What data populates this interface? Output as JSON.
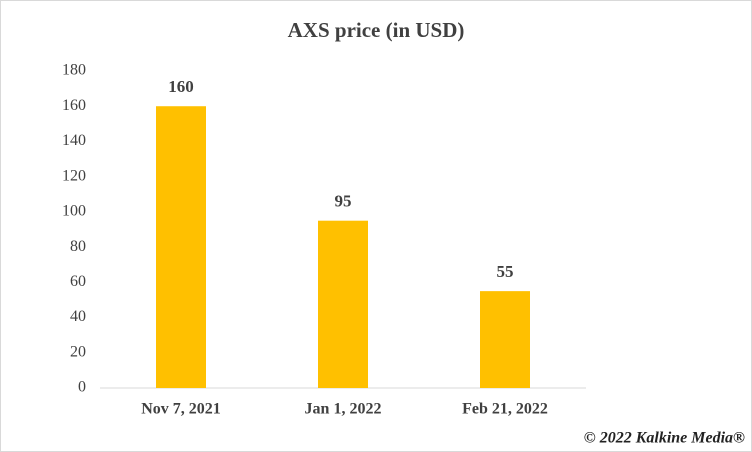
{
  "chart_data": {
    "type": "bar",
    "title": "AXS price (in USD)",
    "categories": [
      "Nov 7, 2021",
      "Jan 1, 2022",
      "Feb 21, 2022"
    ],
    "values": [
      160,
      95,
      55
    ],
    "color": "#ffc000",
    "ylim": [
      0,
      180
    ],
    "yticks": [
      0,
      20,
      40,
      60,
      80,
      100,
      120,
      140,
      160,
      180
    ],
    "grid": false,
    "copyright": "© 2022 Kalkine Media®"
  }
}
